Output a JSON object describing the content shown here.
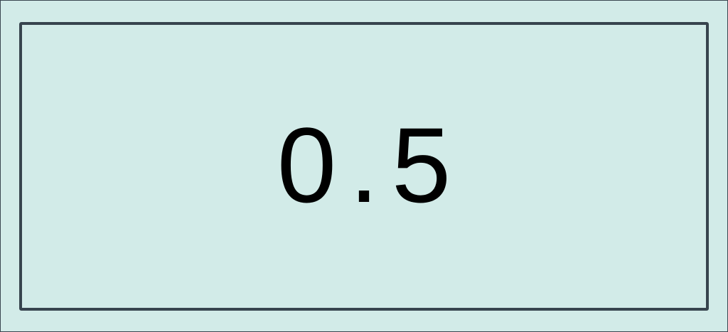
{
  "display": {
    "value": "0.5"
  },
  "colors": {
    "background": "#d2ebe8",
    "border": "#37444e",
    "text": "#000000"
  }
}
